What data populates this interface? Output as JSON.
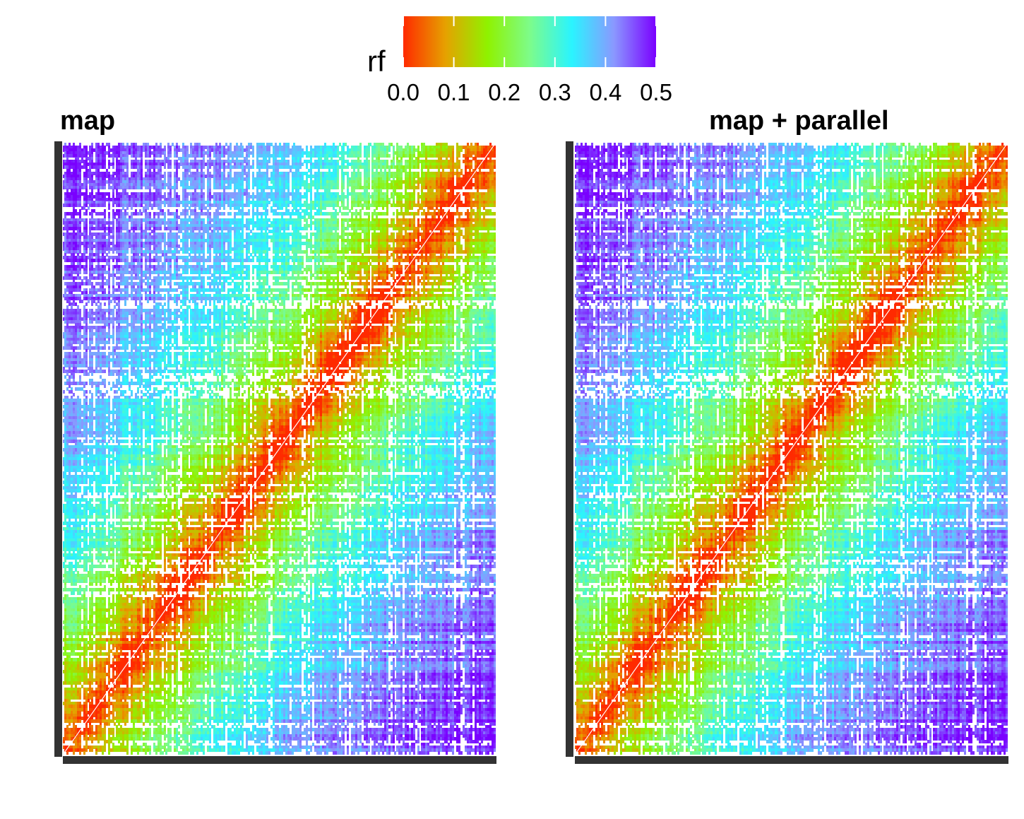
{
  "chart_data": [
    {
      "type": "heatmap",
      "title": "map",
      "legend": {
        "title": "rf",
        "ticks": [
          "0.0",
          "0.1",
          "0.2",
          "0.3",
          "0.4",
          "0.5"
        ],
        "range": [
          0,
          0.5
        ],
        "placement": "top",
        "colors": [
          "#ff2a00",
          "#e6a100",
          "#8ff200",
          "#7dfc8a",
          "#2af4ff",
          "#8a98ff",
          "#7a00ff"
        ]
      },
      "description_values": {
        "diagonal_rf": 0.0,
        "far_corner_rf": 0.45
      },
      "grid": false,
      "axes_labels": false
    },
    {
      "type": "heatmap",
      "title": "map + parallel",
      "legend": {
        "title": "rf",
        "ticks": [
          "0.0",
          "0.1",
          "0.2",
          "0.3",
          "0.4",
          "0.5"
        ],
        "range": [
          0,
          0.5
        ],
        "placement": "top",
        "colors": [
          "#ff2a00",
          "#e6a100",
          "#8ff200",
          "#7dfc8a",
          "#2af4ff",
          "#8a98ff",
          "#7a00ff"
        ]
      },
      "description_values": {
        "diagonal_rf": 0.0,
        "far_corner_rf": 0.45
      },
      "grid": false,
      "axes_labels": false
    }
  ]
}
